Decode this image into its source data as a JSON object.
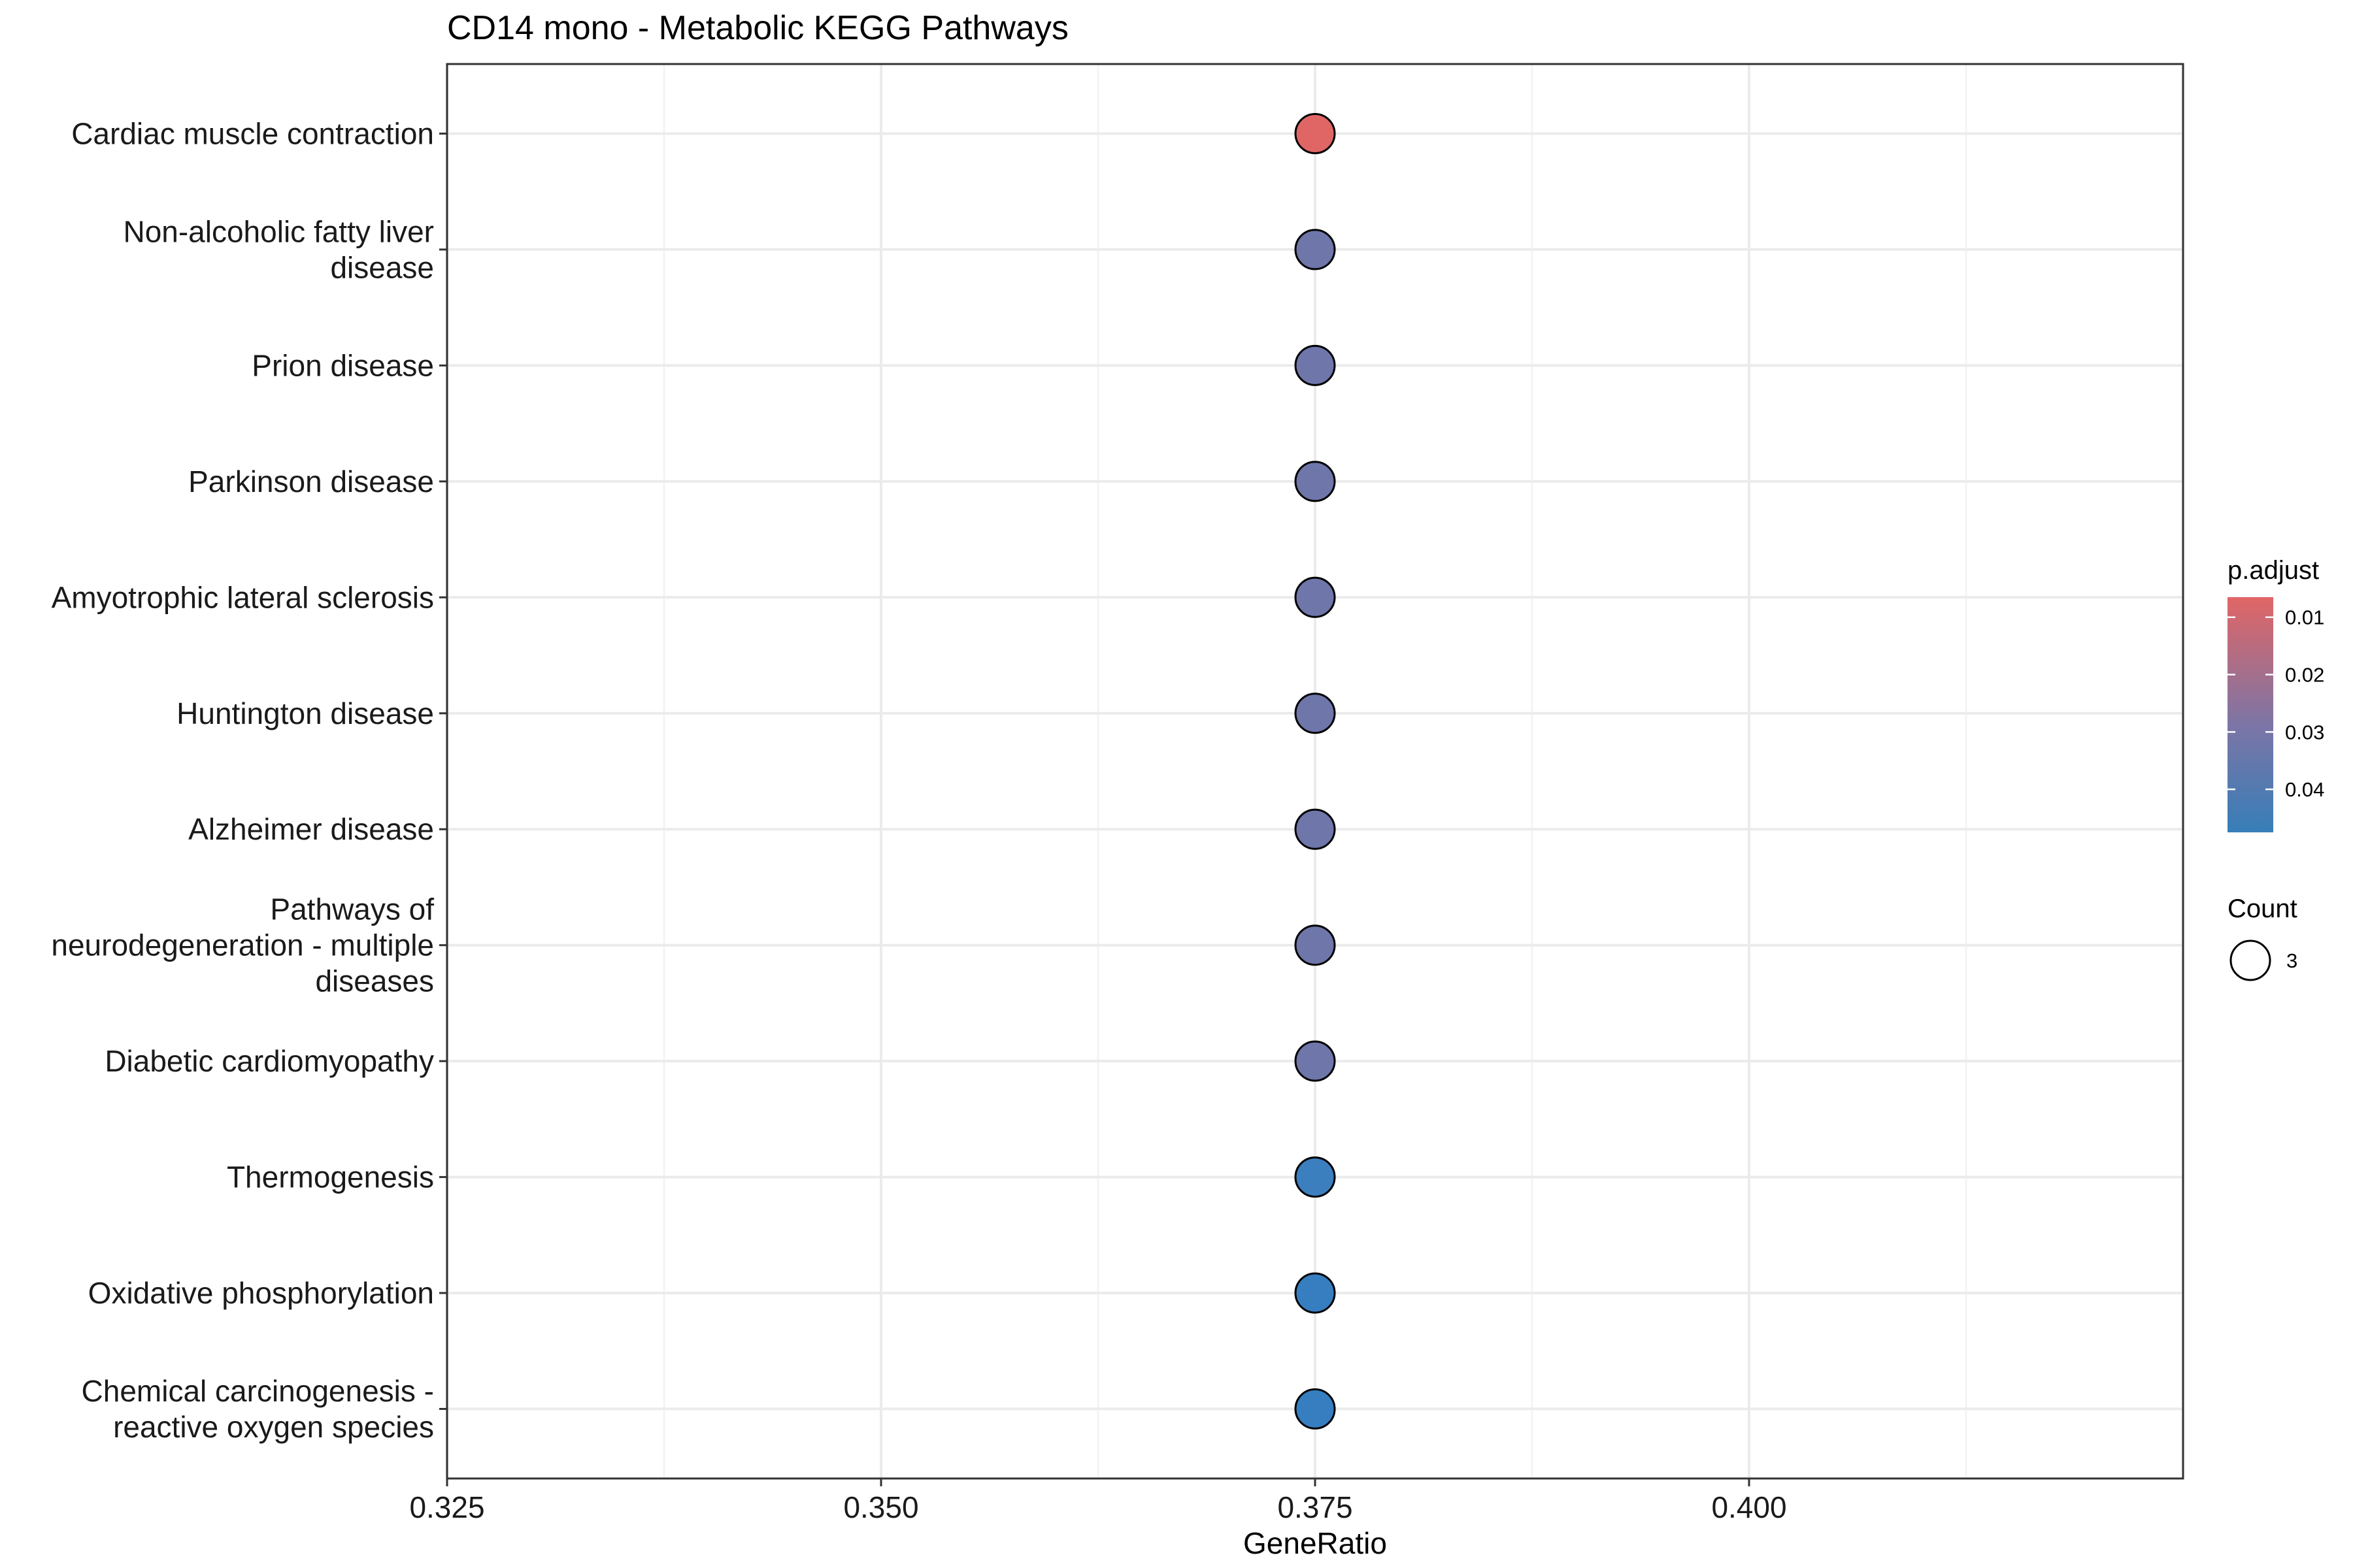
{
  "chart_data": {
    "type": "scatter",
    "title": "CD14 mono - Metabolic KEGG Pathways",
    "xlabel": "GeneRatio",
    "ylabel": "",
    "xlim": [
      0.325,
      0.425
    ],
    "x_ticks": [
      0.325,
      0.35,
      0.375,
      0.4
    ],
    "x_tick_labels": [
      "0.325",
      "0.350",
      "0.375",
      "0.400"
    ],
    "grid": true,
    "categories": [
      "Cardiac muscle contraction",
      "Non-alcoholic fatty liver disease",
      "Prion disease",
      "Parkinson disease",
      "Amyotrophic lateral sclerosis",
      "Huntington disease",
      "Alzheimer disease",
      "Pathways of neurodegeneration - multiple diseases",
      "Diabetic cardiomyopathy",
      "Thermogenesis",
      "Oxidative phosphorylation",
      "Chemical carcinogenesis - reactive oxygen species"
    ],
    "category_label_lines": [
      [
        "Cardiac muscle contraction"
      ],
      [
        "Non-alcoholic fatty liver",
        "disease"
      ],
      [
        "Prion disease"
      ],
      [
        "Parkinson disease"
      ],
      [
        "Amyotrophic lateral sclerosis"
      ],
      [
        "Huntington disease"
      ],
      [
        "Alzheimer disease"
      ],
      [
        "Pathways of",
        "neurodegeneration - multiple",
        "diseases"
      ],
      [
        "Diabetic cardiomyopathy"
      ],
      [
        "Thermogenesis"
      ],
      [
        "Oxidative phosphorylation"
      ],
      [
        "Chemical carcinogenesis -",
        "reactive oxygen species"
      ]
    ],
    "points": [
      {
        "category": "Cardiac muscle contraction",
        "x": 0.375,
        "count": 3,
        "p_adjust": 0.0085,
        "color": "#e06666"
      },
      {
        "category": "Non-alcoholic fatty liver disease",
        "x": 0.375,
        "count": 3,
        "p_adjust": 0.034,
        "color": "#6e76aa"
      },
      {
        "category": "Prion disease",
        "x": 0.375,
        "count": 3,
        "p_adjust": 0.034,
        "color": "#6e76aa"
      },
      {
        "category": "Parkinson disease",
        "x": 0.375,
        "count": 3,
        "p_adjust": 0.034,
        "color": "#6e76aa"
      },
      {
        "category": "Amyotrophic lateral sclerosis",
        "x": 0.375,
        "count": 3,
        "p_adjust": 0.034,
        "color": "#6e76aa"
      },
      {
        "category": "Huntington disease",
        "x": 0.375,
        "count": 3,
        "p_adjust": 0.034,
        "color": "#6e76aa"
      },
      {
        "category": "Alzheimer disease",
        "x": 0.375,
        "count": 3,
        "p_adjust": 0.034,
        "color": "#6e76aa"
      },
      {
        "category": "Pathways of neurodegeneration - multiple diseases",
        "x": 0.375,
        "count": 3,
        "p_adjust": 0.034,
        "color": "#6e76aa"
      },
      {
        "category": "Diabetic cardiomyopathy",
        "x": 0.375,
        "count": 3,
        "p_adjust": 0.034,
        "color": "#6e76aa"
      },
      {
        "category": "Thermogenesis",
        "x": 0.375,
        "count": 3,
        "p_adjust": 0.045,
        "color": "#3c7fbf"
      },
      {
        "category": "Oxidative phosphorylation",
        "x": 0.375,
        "count": 3,
        "p_adjust": 0.046,
        "color": "#377ec0"
      },
      {
        "category": "Chemical carcinogenesis - reactive oxygen species",
        "x": 0.375,
        "count": 3,
        "p_adjust": 0.046,
        "color": "#377ec0"
      }
    ],
    "legend": {
      "placement": "right",
      "color_title": "p.adjust",
      "color_range": [
        0.0065,
        0.0475
      ],
      "color_low": "#e06666",
      "color_high": "#377eb8",
      "color_ticks": [
        0.01,
        0.02,
        0.03,
        0.04
      ],
      "color_tick_labels": [
        "0.01",
        "0.02",
        "0.03",
        "0.04"
      ],
      "size_title": "Count",
      "size_entries": [
        {
          "label": "3",
          "value": 3
        }
      ]
    }
  }
}
